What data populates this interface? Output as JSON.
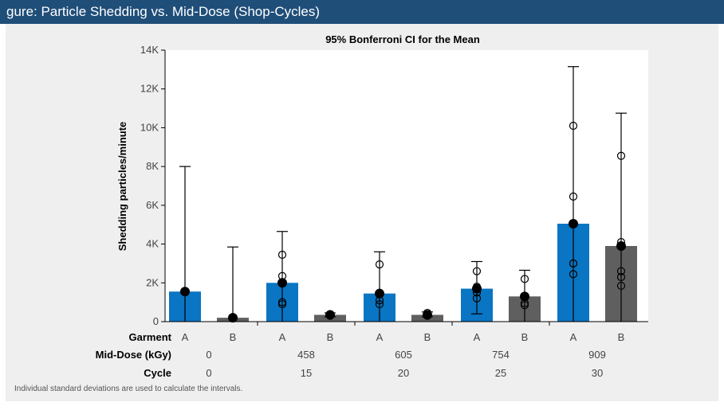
{
  "header": {
    "title": "gure: Particle Shedding vs. Mid-Dose (Shop-Cycles)"
  },
  "footnote": "Individual standard deviations are used to calculate the intervals.",
  "colors": {
    "A": "#0a75c2",
    "B": "#5f5f5f",
    "header_bg": "#1f4e79",
    "panel_bg": "#efefef"
  },
  "chart_data": {
    "type": "bar",
    "title": "95% Bonferroni CI for the Mean",
    "xlabel": "",
    "ylabel": "Shedding particles/minute",
    "ylim": [
      0,
      14000
    ],
    "yticks": [
      0,
      2000,
      4000,
      6000,
      8000,
      10000,
      12000,
      14000
    ],
    "ytick_labels": [
      "0",
      "2K",
      "4K",
      "6K",
      "8K",
      "10K",
      "12K",
      "14K"
    ],
    "grid": false,
    "row_headers": [
      "Garment",
      "Mid-Dose (kGy)",
      "Cycle"
    ],
    "groups": [
      {
        "dose": "0",
        "cycle": "0"
      },
      {
        "dose": "458",
        "cycle": "15"
      },
      {
        "dose": "605",
        "cycle": "20"
      },
      {
        "dose": "754",
        "cycle": "25"
      },
      {
        "dose": "909",
        "cycle": "30"
      }
    ],
    "bars": [
      {
        "group": 0,
        "garment": "A",
        "mean": 1550,
        "ci_high": 8000,
        "ci_low": 0,
        "points": []
      },
      {
        "group": 0,
        "garment": "B",
        "mean": 200,
        "ci_high": 3850,
        "ci_low": 0,
        "points": []
      },
      {
        "group": 1,
        "garment": "A",
        "mean": 2000,
        "ci_high": 4650,
        "ci_low": 0,
        "points": [
          3450,
          2350,
          2000,
          1000,
          900
        ]
      },
      {
        "group": 1,
        "garment": "B",
        "mean": 350,
        "ci_high": 450,
        "ci_low": 250,
        "points": [
          380,
          330,
          300
        ]
      },
      {
        "group": 2,
        "garment": "A",
        "mean": 1450,
        "ci_high": 3600,
        "ci_low": 0,
        "points": [
          2950,
          1400,
          1100,
          900
        ]
      },
      {
        "group": 2,
        "garment": "B",
        "mean": 350,
        "ci_high": 500,
        "ci_low": 250,
        "points": [
          450,
          350,
          300
        ]
      },
      {
        "group": 3,
        "garment": "A",
        "mean": 1700,
        "ci_high": 3100,
        "ci_low": 400,
        "points": [
          2600,
          1800,
          1500,
          1200
        ]
      },
      {
        "group": 3,
        "garment": "B",
        "mean": 1300,
        "ci_high": 2650,
        "ci_low": 0,
        "points": [
          2200,
          950,
          850
        ]
      },
      {
        "group": 4,
        "garment": "A",
        "mean": 5050,
        "ci_high": 13150,
        "ci_low": 0,
        "points": [
          10100,
          6450,
          3000,
          3000,
          2450
        ]
      },
      {
        "group": 4,
        "garment": "B",
        "mean": 3900,
        "ci_high": 10750,
        "ci_low": 0,
        "points": [
          8550,
          4100,
          2600,
          2300,
          1850
        ]
      }
    ]
  }
}
